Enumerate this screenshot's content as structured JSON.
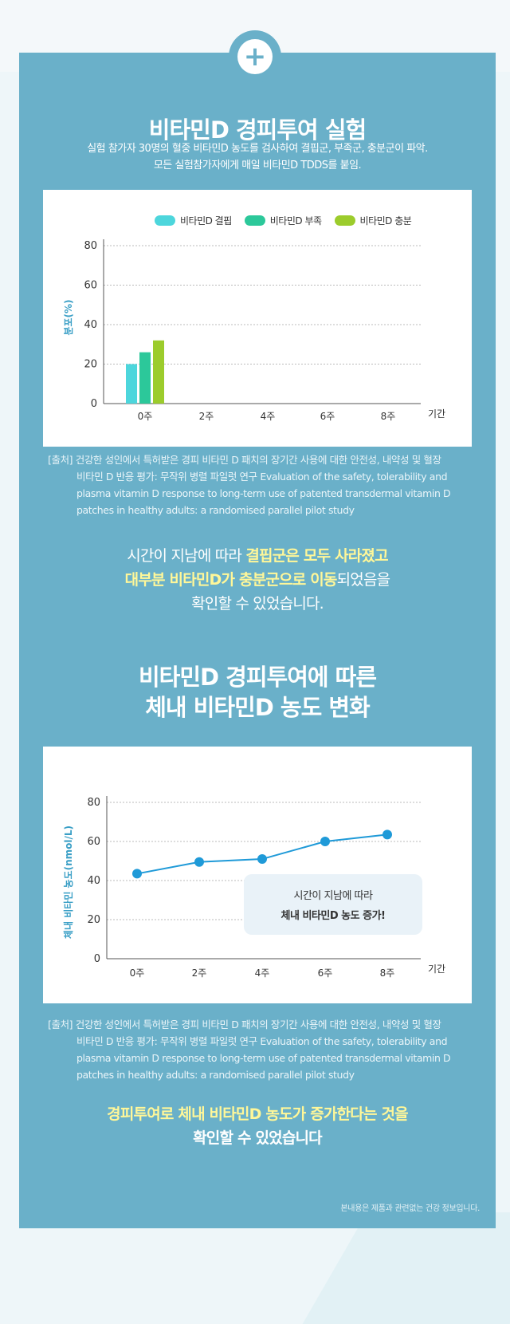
{
  "section1": {
    "title": "비타민D 경피투여 실험",
    "subtitle_lines": [
      "실험 참가자 30명의 혈중 비타민D 농도를 검사하여 결핍군, 부족군, 충분군이 파악.",
      "모든 실험참가자에게 매일 비타민D TDDS를 붙임."
    ]
  },
  "colors": {
    "background": "#6ab0c9",
    "highlight": "#fff799",
    "deficient": "#4dd6dc",
    "insufficient": "#2cc89a",
    "sufficient": "#9ccc2c",
    "line": "#1f9ad8"
  },
  "chart_data": [
    {
      "type": "bar",
      "categories": [
        "0주",
        "2주",
        "4주",
        "6주",
        "8주"
      ],
      "series": [
        {
          "name": "비타민D 결핍",
          "values": [
            20,
            null,
            null,
            null,
            null
          ]
        },
        {
          "name": "비타민D 부족",
          "values": [
            26,
            null,
            null,
            null,
            null
          ]
        },
        {
          "name": "비타민D 충분",
          "values": [
            32,
            null,
            null,
            null,
            null
          ]
        }
      ],
      "xlabel": "기간",
      "ylabel": "분포(%)",
      "ylim": [
        0,
        80
      ],
      "yticks": [
        0,
        20,
        40,
        60,
        80
      ],
      "grid": true,
      "legend": "top-right"
    },
    {
      "type": "line",
      "categories": [
        "0주",
        "2주",
        "4주",
        "6주",
        "8주"
      ],
      "series": [
        {
          "values": [
            43.5,
            49.5,
            51,
            60,
            63.5
          ]
        }
      ],
      "xlabel": "기간",
      "ylabel": "체내 비타민 농도(nmol/L)",
      "ylim": [
        0,
        80
      ],
      "yticks": [
        0,
        20,
        40,
        60,
        80
      ],
      "grid": true,
      "annotation": [
        "시간이 지남에 따라",
        "체내 비타민D 농도 증가!"
      ]
    }
  ],
  "source": {
    "first": "[출처] 건강한 성인에서 특허받은 경피 비타민 D 패치의 장기간 사용에 대한 안전성, 내약성 및 혈장",
    "rest": [
      "비타민 D 반응 평가: 무작위 병렬 파일럿 연구 Evaluation of the safety, tolerability and",
      "plasma vitamin D response to long-term use of patented transdermal vitamin D",
      "patches in healthy adults: a randomised parallel pilot study"
    ]
  },
  "result1": {
    "line1_plain": "시간이 지남에 따라 ",
    "line1_hl": "결핍군은 모두 사라졌고",
    "line2_hl": "대부분 비타민D가 충분군으로 이동",
    "line2_plain": "되었음을",
    "line3": "확인할 수 있었습니다."
  },
  "section2": {
    "title_lines": [
      "비타민D 경피투여에 따른",
      "체내 비타민D 농도 변화"
    ]
  },
  "result2": {
    "line1": "경피투여로 체내 비타민D 농도가 증가한다는 것을",
    "line2": "확인할 수 있었습니다"
  },
  "footnote": "본내용은 제품과 관련없는 건강 정보입니다."
}
